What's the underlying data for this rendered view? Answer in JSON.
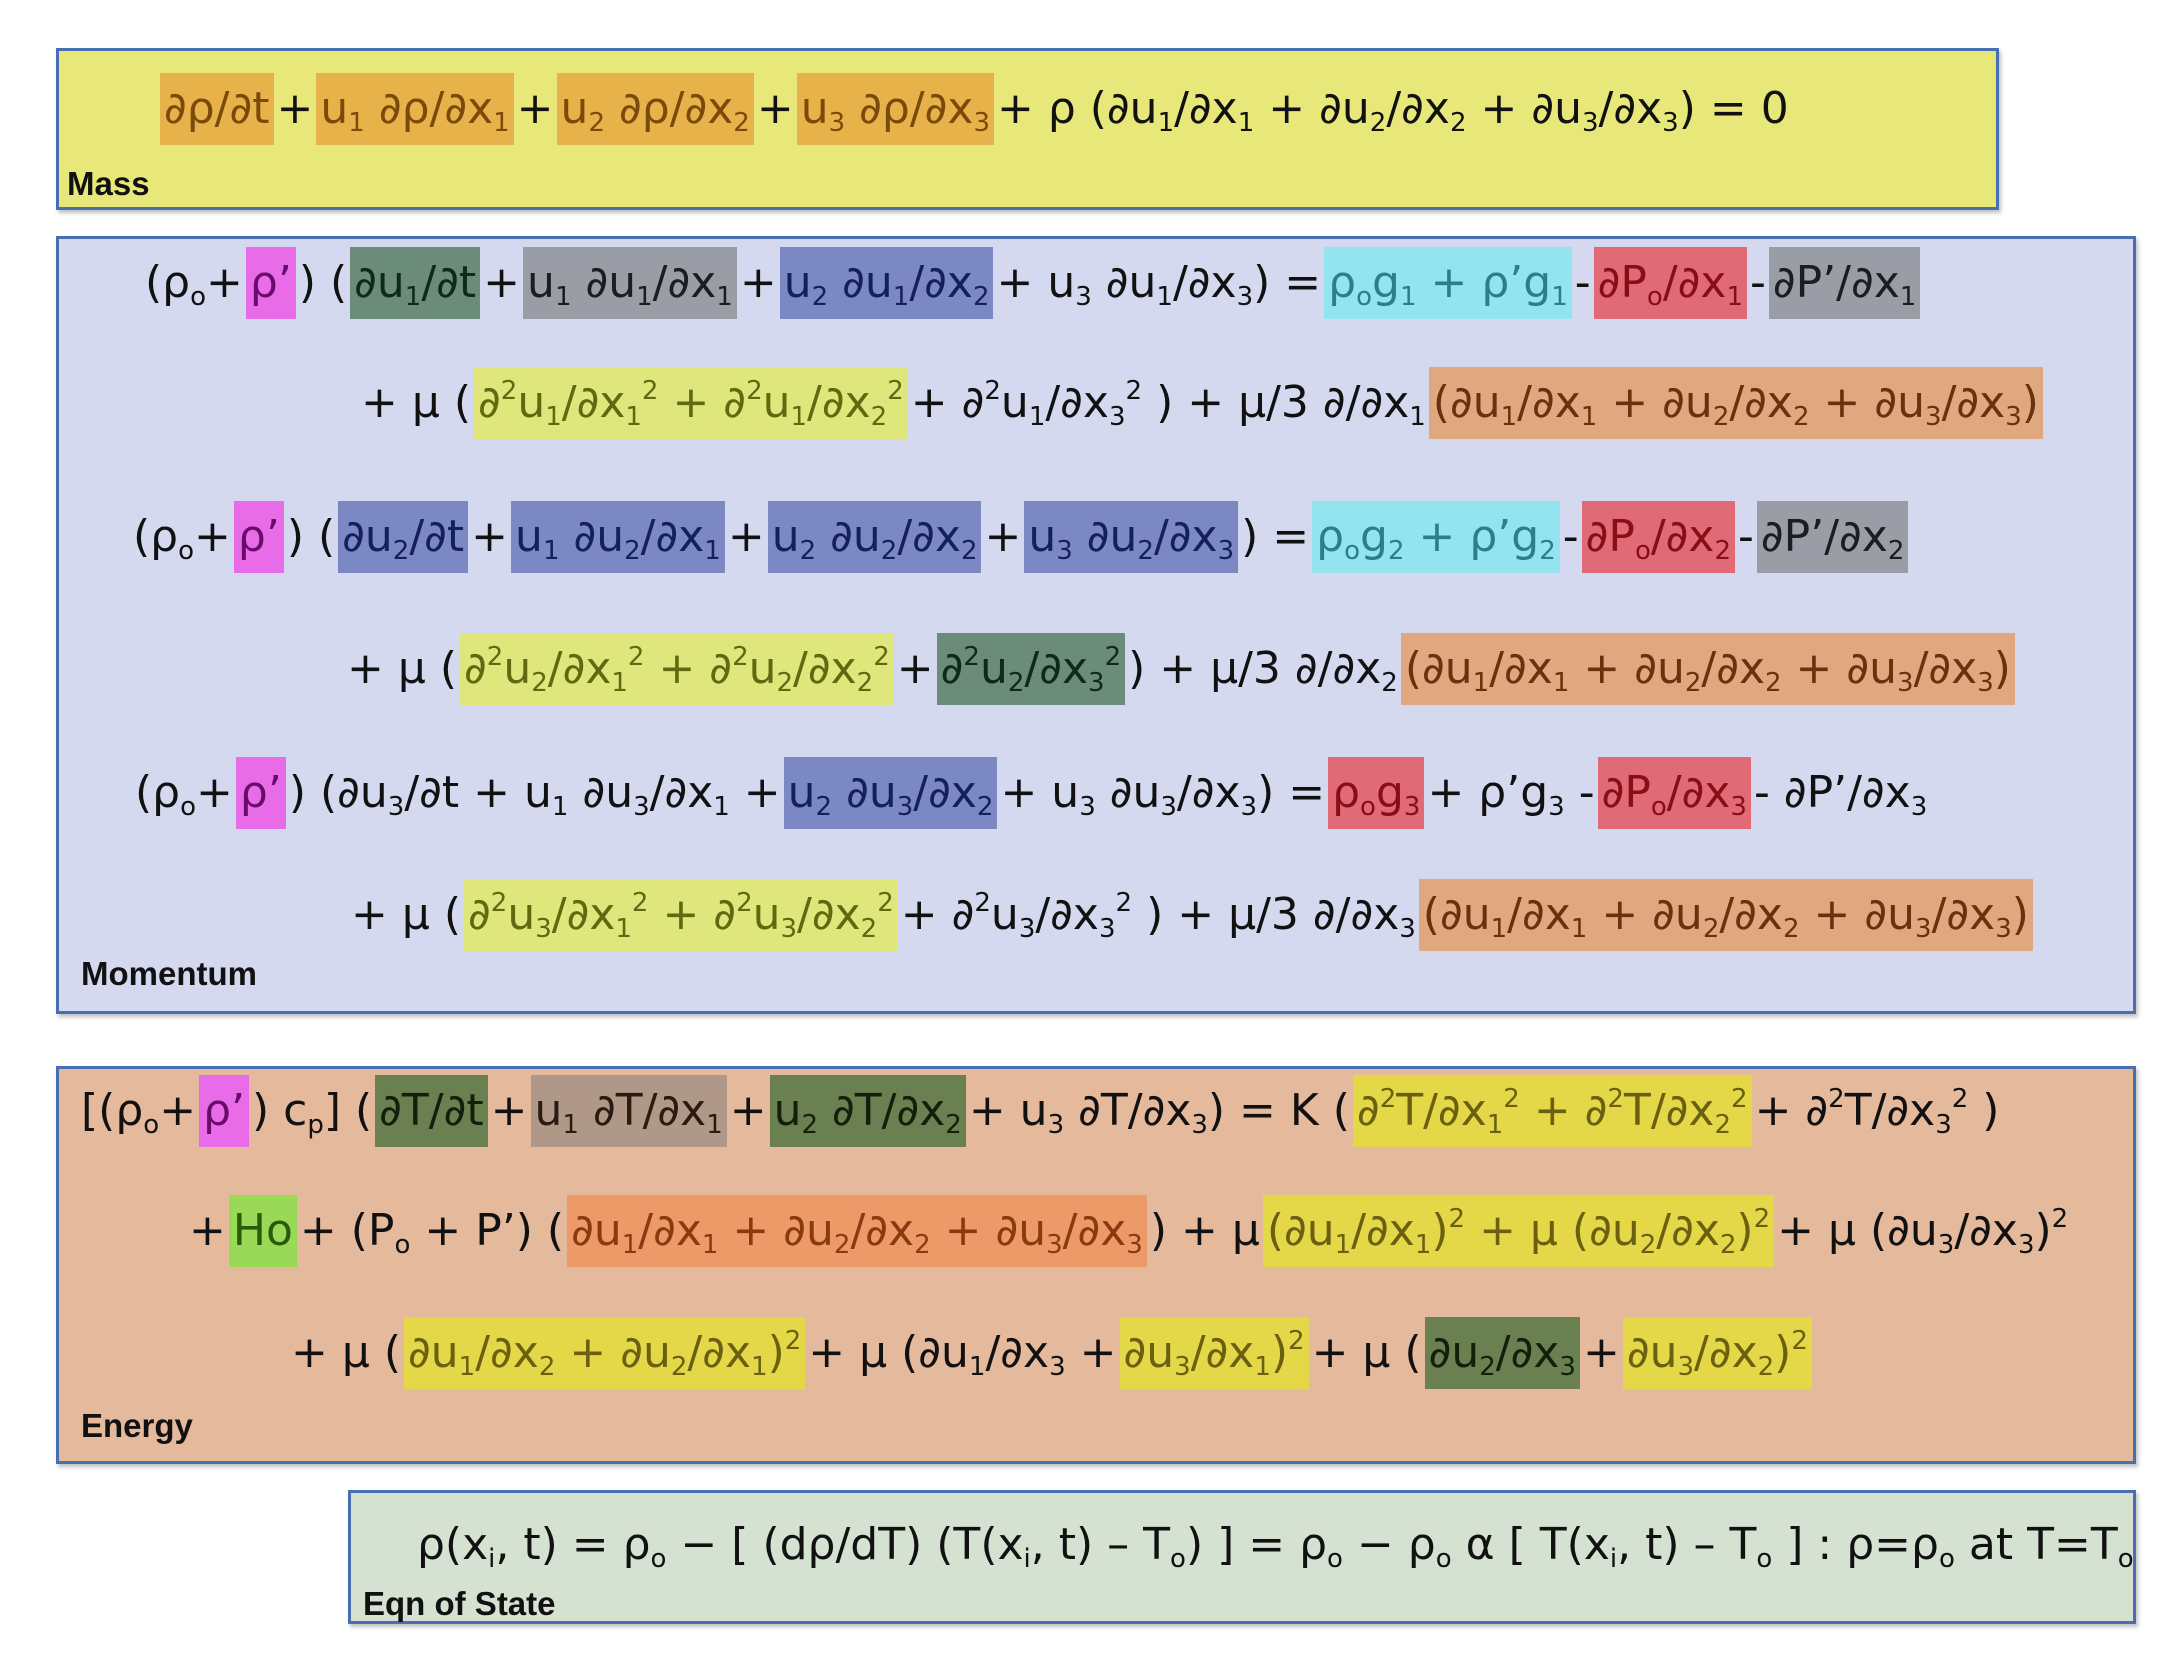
{
  "sections": {
    "mass": {
      "label": "Mass",
      "color": "#e8e87a"
    },
    "momentum": {
      "label": "Momentum",
      "color": "#d4d9ef"
    },
    "energy": {
      "label": "Energy",
      "color": "#e4b99c"
    },
    "state": {
      "label": "Eqn of State",
      "color": "#d5e2d2"
    }
  },
  "equations": {
    "mass": [
      [
        {
          "text": "∂ρ/∂t",
          "hl": "orange"
        },
        {
          "text": "+"
        },
        {
          "text": "u₁ ∂ρ/∂x₁",
          "hl": "orange"
        },
        {
          "text": "+"
        },
        {
          "text": "u₂ ∂ρ/∂x₂",
          "hl": "orange"
        },
        {
          "text": "+"
        },
        {
          "text": "u₃ ∂ρ/∂x₃",
          "hl": "orange"
        },
        {
          "text": "+ ρ (∂u₁/∂x₁ + ∂u₂/∂x₂ + ∂u₃/∂x₃) = 0"
        }
      ]
    ],
    "momentum": [
      [
        {
          "text": "(ρₒ+"
        },
        {
          "text": "ρ’",
          "hl": "magenta"
        },
        {
          "text": ") ("
        },
        {
          "text": "∂u₁/∂t",
          "hl": "darkgreen"
        },
        {
          "text": "+"
        },
        {
          "text": "u₁ ∂u₁/∂x₁",
          "hl": "gray"
        },
        {
          "text": "+"
        },
        {
          "text": "u₂ ∂u₁/∂x₂",
          "hl": "blue"
        },
        {
          "text": "+ u₃ ∂u₁/∂x₃) ="
        },
        {
          "text": "ρₒg₁ + ρ’g₁",
          "hl": "cyan"
        },
        {
          "text": "-"
        },
        {
          "text": "∂Pₒ/∂x₁",
          "hl": "red"
        },
        {
          "text": "-"
        },
        {
          "text": "∂P’/∂x₁",
          "hl": "gray"
        }
      ],
      [
        {
          "text": "+ μ ("
        },
        {
          "text": "∂²u₁/∂x₁² + ∂²u₁/∂x₂²",
          "hl": "ltgreen"
        },
        {
          "text": "+ ∂²u₁/∂x₃²  ) + μ/3  ∂/∂x₁"
        },
        {
          "text": "(∂u₁/∂x₁ + ∂u₂/∂x₂ + ∂u₃/∂x₃)",
          "hl": "peach"
        }
      ],
      [
        {
          "text": "(ρₒ+"
        },
        {
          "text": "ρ’",
          "hl": "magenta"
        },
        {
          "text": ") ("
        },
        {
          "text": "∂u₂/∂t",
          "hl": "blue"
        },
        {
          "text": "+"
        },
        {
          "text": "u₁ ∂u₂/∂x₁",
          "hl": "blue"
        },
        {
          "text": "+"
        },
        {
          "text": "u₂ ∂u₂/∂x₂",
          "hl": "blue"
        },
        {
          "text": "+"
        },
        {
          "text": "u₃ ∂u₂/∂x₃",
          "hl": "blue"
        },
        {
          "text": ") ="
        },
        {
          "text": "ρₒg₂ + ρ’g₂",
          "hl": "cyan"
        },
        {
          "text": "-"
        },
        {
          "text": "∂Pₒ/∂x₂",
          "hl": "red"
        },
        {
          "text": "-"
        },
        {
          "text": "∂P’/∂x₂",
          "hl": "gray"
        }
      ],
      [
        {
          "text": "+ μ ("
        },
        {
          "text": "∂²u₂/∂x₁² + ∂²u₂/∂x₂²",
          "hl": "ltgreen"
        },
        {
          "text": "+"
        },
        {
          "text": "∂²u₂/∂x₃²",
          "hl": "darkgreen"
        },
        {
          "text": ") + μ/3  ∂/∂x₂"
        },
        {
          "text": "(∂u₁/∂x₁ + ∂u₂/∂x₂ + ∂u₃/∂x₃)",
          "hl": "peach"
        }
      ],
      [
        {
          "text": "(ρₒ+"
        },
        {
          "text": "ρ’",
          "hl": "magenta"
        },
        {
          "text": ") (∂u₃/∂t + u₁ ∂u₃/∂x₁ +"
        },
        {
          "text": "u₂ ∂u₃/∂x₂",
          "hl": "blue"
        },
        {
          "text": "+ u₃ ∂u₃/∂x₃) ="
        },
        {
          "text": "ρₒg₃",
          "hl": "red"
        },
        {
          "text": "+ ρ’g₃ -"
        },
        {
          "text": "∂Pₒ/∂x₃",
          "hl": "red"
        },
        {
          "text": "- ∂P’/∂x₃"
        }
      ],
      [
        {
          "text": "+ μ ("
        },
        {
          "text": "∂²u₃/∂x₁² + ∂²u₃/∂x₂²",
          "hl": "ltgreen"
        },
        {
          "text": "+ ∂²u₃/∂x₃²  ) + μ/3  ∂/∂x₃"
        },
        {
          "text": "(∂u₁/∂x₁ + ∂u₂/∂x₂ + ∂u₃/∂x₃)",
          "hl": "peach"
        }
      ]
    ],
    "energy": [
      [
        {
          "text": "[(ρₒ+"
        },
        {
          "text": "ρ’",
          "hl": "magenta"
        },
        {
          "text": ") cₚ]  ("
        },
        {
          "text": "∂T/∂t",
          "hl": "olive"
        },
        {
          "text": "+"
        },
        {
          "text": "u₁ ∂T/∂x₁",
          "hl": "brown"
        },
        {
          "text": "+"
        },
        {
          "text": "u₂ ∂T/∂x₂",
          "hl": "olive"
        },
        {
          "text": "+ u₃ ∂T/∂x₃) =  K ("
        },
        {
          "text": "∂²T/∂x₁² + ∂²T/∂x₂²",
          "hl": "yellow"
        },
        {
          "text": "+ ∂²T/∂x₃²  )"
        }
      ],
      [
        {
          "text": "+"
        },
        {
          "text": "Ho",
          "hl": "green"
        },
        {
          "text": "+ (Pₒ + P’) ("
        },
        {
          "text": "∂u₁/∂x₁ + ∂u₂/∂x₂ + ∂u₃/∂x₃",
          "hl": "orangered"
        },
        {
          "text": ")  +  μ"
        },
        {
          "text": "(∂u₁/∂x₁)² +  μ (∂u₂/∂x₂)²",
          "hl": "yellow"
        },
        {
          "text": "+ μ (∂u₃/∂x₃)²"
        }
      ],
      [
        {
          "text": "+  μ ("
        },
        {
          "text": "∂u₁/∂x₂ + ∂u₂/∂x₁)²",
          "hl": "yellow"
        },
        {
          "text": "+ μ (∂u₁/∂x₃ +"
        },
        {
          "text": "∂u₃/∂x₁)²",
          "hl": "yellow"
        },
        {
          "text": "+ μ ("
        },
        {
          "text": "∂u₂/∂x₃",
          "hl": "olive"
        },
        {
          "text": "+"
        },
        {
          "text": "∂u₃/∂x₂)²",
          "hl": "yellow"
        }
      ]
    ],
    "state": [
      [
        {
          "text": "ρ(xᵢ, t) = ρₒ − [ (dρ/dT)  (T(xᵢ, t) – Tₒ) ]  =  ρₒ −   ρₒ α [ T(xᵢ, t) – Tₒ ]  : ρ=ρₒ at T=Tₒ"
        }
      ]
    ]
  }
}
